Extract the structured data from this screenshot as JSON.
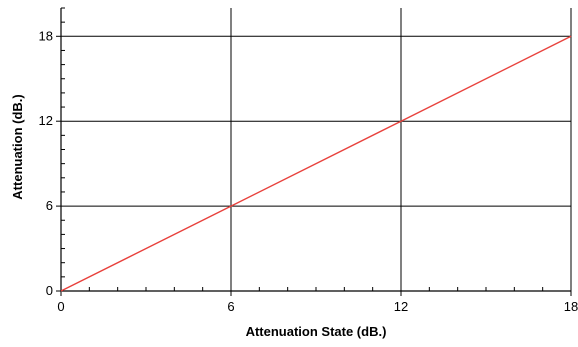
{
  "chart_data": {
    "type": "line",
    "title": "",
    "xlabel": "Attenuation State (dB.)",
    "ylabel": "Attenuation (dB.)",
    "xlim": [
      0,
      18
    ],
    "ylim": [
      0,
      20
    ],
    "x_ticks": [
      0,
      6,
      12,
      18
    ],
    "y_ticks": [
      0,
      6,
      12,
      18
    ],
    "grid": true,
    "legend": "none",
    "series": [
      {
        "color": "#e8413c",
        "x": [
          0,
          6,
          12,
          18
        ],
        "y": [
          0,
          6,
          12,
          18
        ]
      }
    ],
    "colors": {
      "grid": "#000000",
      "axis": "#000000",
      "background": "#ffffff"
    }
  }
}
